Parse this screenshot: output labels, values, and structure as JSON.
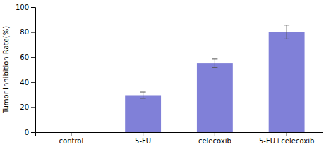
{
  "chart_data": {
    "type": "bar",
    "categories": [
      "control",
      "5-FU",
      "celecoxib",
      "5-FU+celecoxib"
    ],
    "values": [
      0,
      29.5,
      55.0,
      80.0
    ],
    "errors": [
      0,
      2.5,
      3.5,
      5.5
    ],
    "color": "#8080d8",
    "ylabel": "Tumor Inhibition Rate(%)",
    "ylim": [
      0,
      100
    ],
    "yticks": [
      0,
      20,
      40,
      60,
      80,
      100
    ],
    "grid": false
  }
}
